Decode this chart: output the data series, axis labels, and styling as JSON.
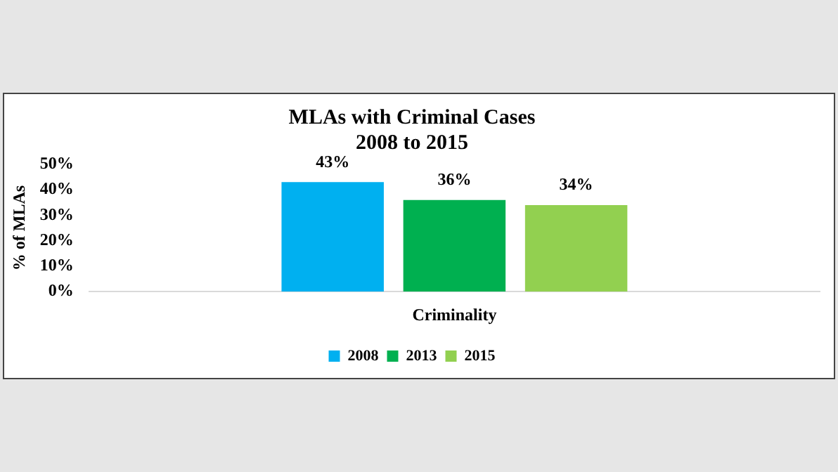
{
  "chart_data": {
    "type": "bar",
    "title": [
      "MLAs with Criminal Cases",
      "2008 to 2015"
    ],
    "ylabel": "% of MLAs",
    "categories": [
      "Criminality"
    ],
    "series": [
      {
        "name": "2008",
        "color": "#00b0f0",
        "values": [
          43
        ],
        "value_labels": [
          "43%"
        ]
      },
      {
        "name": "2013",
        "color": "#00b050",
        "values": [
          36
        ],
        "value_labels": [
          "36%"
        ]
      },
      {
        "name": "2015",
        "color": "#92d050",
        "values": [
          34
        ],
        "value_labels": [
          "34%"
        ]
      }
    ],
    "ylim": [
      0,
      50
    ],
    "yticks": [
      {
        "value": 0,
        "label": "0%"
      },
      {
        "value": 10,
        "label": "10%"
      },
      {
        "value": 20,
        "label": "20%"
      },
      {
        "value": 30,
        "label": "30%"
      },
      {
        "value": 40,
        "label": "40%"
      },
      {
        "value": 50,
        "label": "50%"
      }
    ],
    "grid": false,
    "legend": "bottom"
  }
}
